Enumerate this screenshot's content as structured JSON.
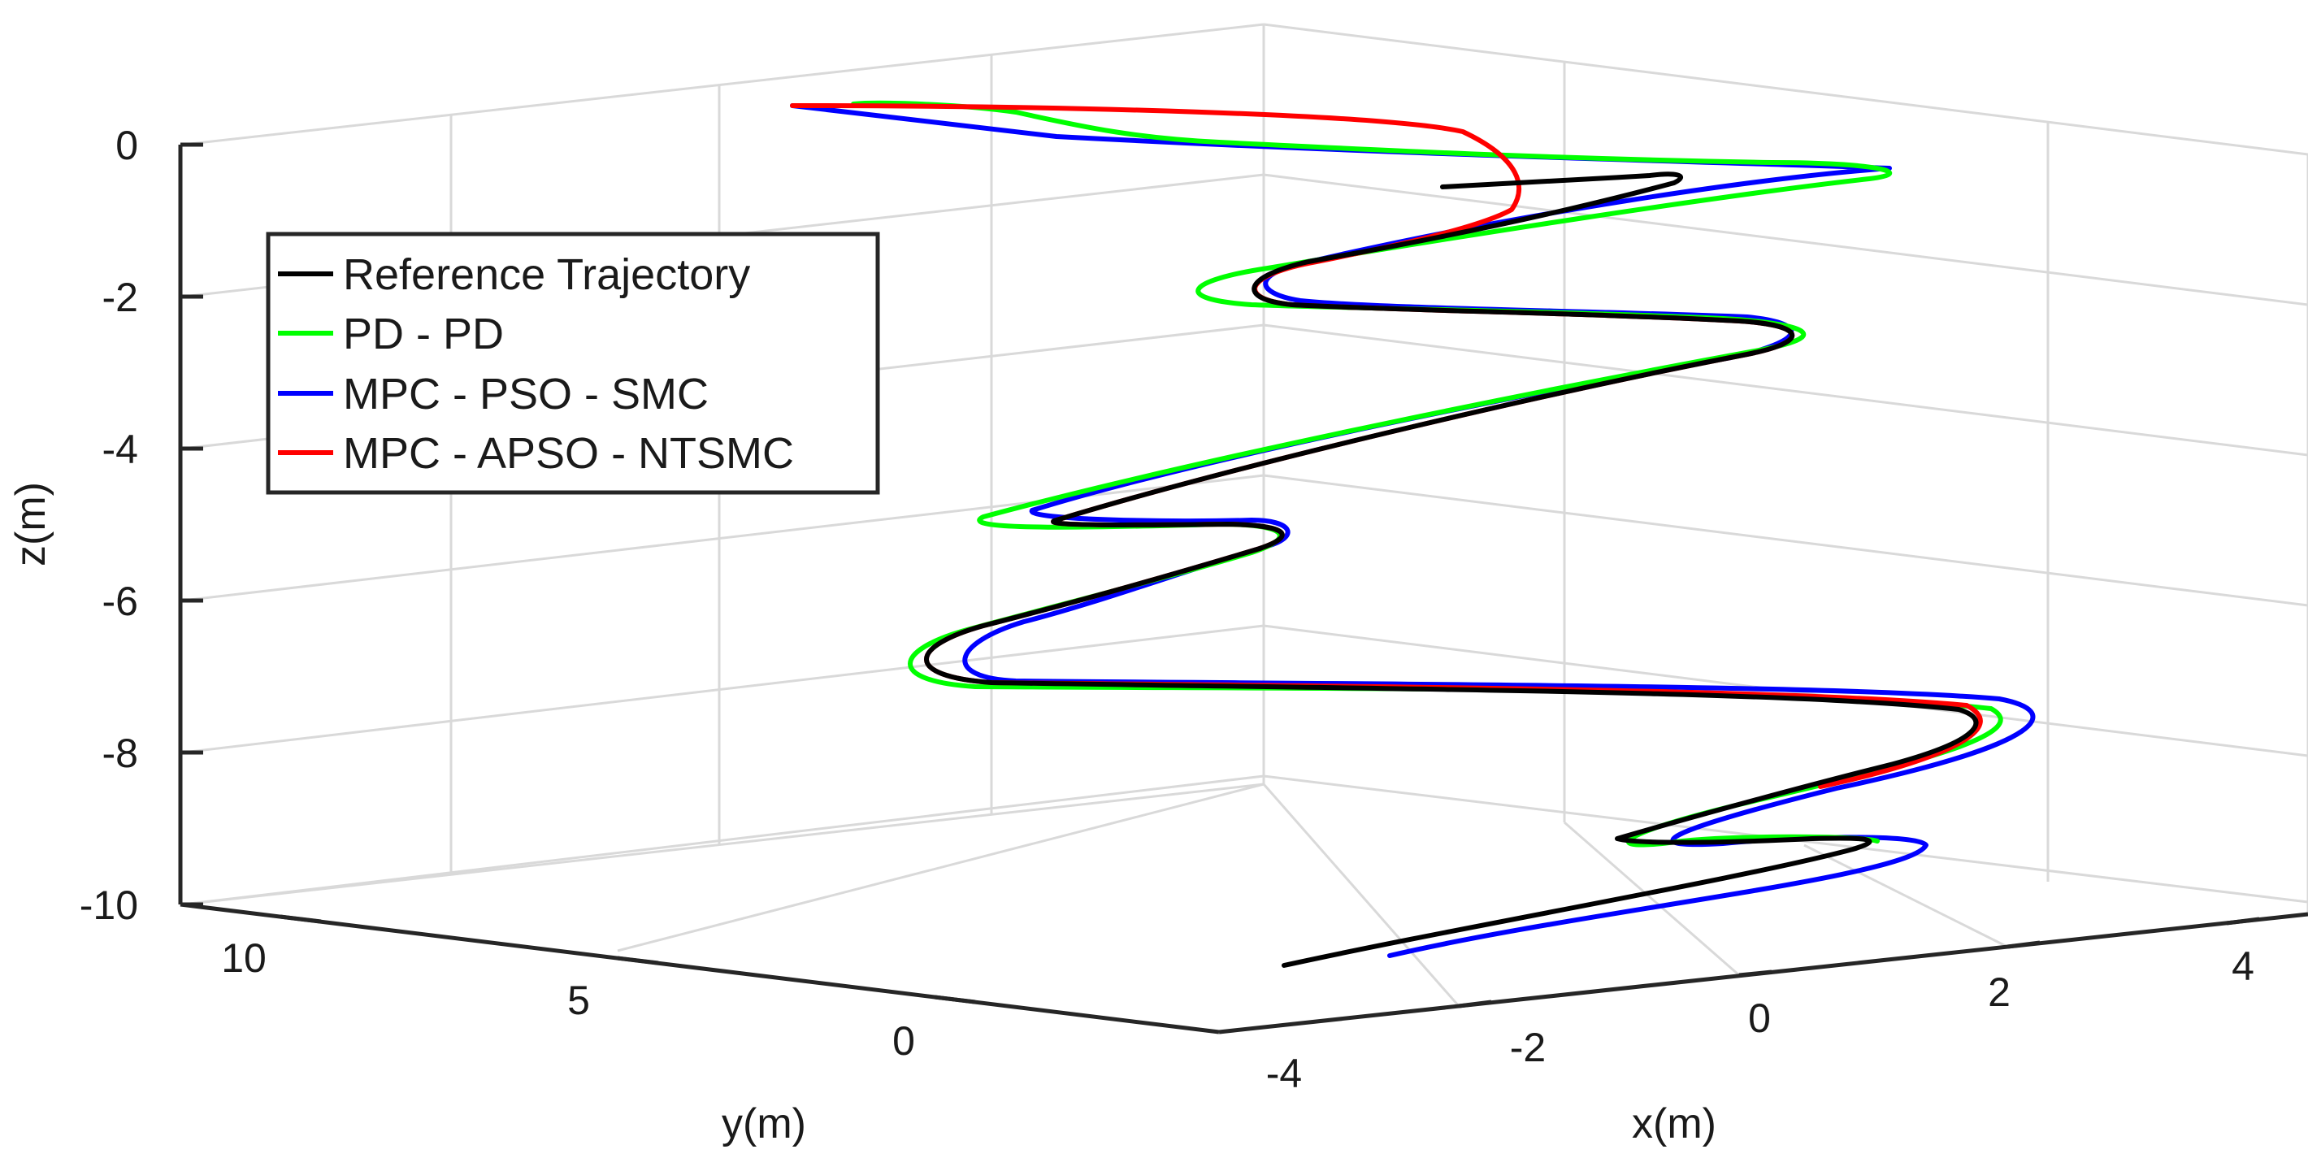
{
  "chart_data": {
    "type": "line3d",
    "title": "",
    "xlabel": "x(m)",
    "ylabel": "y(m)",
    "zlabel": "z(m)",
    "xlim": [
      -4,
      4
    ],
    "ylim": [
      0,
      12
    ],
    "zlim": [
      -10,
      0
    ],
    "grid": true,
    "x_ticks": [
      "-4",
      "-2",
      "0",
      "2",
      "4"
    ],
    "y_ticks": [
      "0",
      "5",
      "10"
    ],
    "z_ticks": [
      "0",
      "-2",
      "-4",
      "-6",
      "-8",
      "-10"
    ],
    "legend_position": "upper-left",
    "series": [
      {
        "name": "Reference Trajectory",
        "color": "#000000",
        "points": [
          [
            -3.2,
            0.0,
            -10.0
          ],
          [
            0.5,
            1.2,
            -9.25
          ],
          [
            0.05,
            1.0,
            -9.2
          ],
          [
            0.6,
            1.7,
            -8.5
          ],
          [
            1.9,
            2.1,
            -7.6
          ],
          [
            -1.8,
            3.6,
            -7.0
          ],
          [
            -1.6,
            4.2,
            -6.5
          ],
          [
            -0.4,
            4.0,
            -6.0
          ],
          [
            -1.2,
            5.2,
            -5.1
          ],
          [
            0.1,
            5.8,
            -5.0
          ],
          [
            -0.9,
            6.5,
            -4.2
          ],
          [
            -0.1,
            7.6,
            -2.7
          ],
          [
            -1.0,
            8.8,
            -2.0
          ],
          [
            -0.6,
            9.2,
            -1.8
          ],
          [
            0.0,
            9.6,
            -0.7
          ],
          [
            -0.4,
            10.1,
            -0.55
          ]
        ]
      },
      {
        "name": "PD - PD",
        "color": "#00ff00",
        "points": [
          [
            0.45,
            1.1,
            -9.15
          ],
          [
            -0.05,
            0.9,
            -9.25
          ],
          [
            0.5,
            1.6,
            -8.6
          ],
          [
            2.1,
            2.3,
            -7.6
          ],
          [
            -1.9,
            3.5,
            -7.0
          ],
          [
            -1.7,
            4.3,
            -6.55
          ],
          [
            -0.4,
            4.0,
            -6.05
          ],
          [
            -1.3,
            5.3,
            -5.1
          ],
          [
            0.2,
            5.9,
            -5.05
          ],
          [
            -0.7,
            6.4,
            -4.3
          ],
          [
            0.2,
            7.8,
            -2.75
          ],
          [
            -1.2,
            8.9,
            -2.0
          ],
          [
            -0.2,
            9.6,
            -1.0
          ],
          [
            -1.2,
            11.8,
            0.6
          ],
          [
            -1.5,
            11.4,
            0.45
          ]
        ]
      },
      {
        "name": "MPC - PSO - SMC",
        "color": "#0000ff",
        "points": [
          [
            -2.8,
            0.1,
            -9.9
          ],
          [
            0.6,
            1.5,
            -9.3
          ],
          [
            0.2,
            1.2,
            -9.05
          ],
          [
            0.4,
            1.8,
            -8.6
          ],
          [
            2.3,
            2.4,
            -7.6
          ],
          [
            -1.6,
            3.9,
            -6.85
          ],
          [
            -1.4,
            4.4,
            -6.4
          ],
          [
            -0.3,
            4.1,
            -6.05
          ],
          [
            -1.1,
            5.4,
            -5.0
          ],
          [
            0.3,
            6.0,
            -4.9
          ],
          [
            -0.8,
            6.7,
            -4.1
          ],
          [
            0.0,
            7.9,
            -2.65
          ],
          [
            -0.8,
            9.0,
            -1.95
          ],
          [
            0.2,
            9.8,
            -0.8
          ],
          [
            -1.5,
            11.4,
            0.45
          ]
        ]
      },
      {
        "name": "MPC - APSO - NTSMC",
        "color": "#ff0000",
        "points": [
          [
            0.5,
            1.3,
            -8.6
          ],
          [
            1.9,
            2.2,
            -7.6
          ],
          [
            -1.85,
            3.6,
            -7.0
          ],
          [
            -1.6,
            4.2,
            -6.5
          ],
          [
            -0.4,
            4.0,
            -6.0
          ],
          [
            -1.2,
            5.2,
            -5.05
          ],
          [
            0.1,
            5.8,
            -5.0
          ],
          [
            -0.9,
            6.5,
            -4.2
          ],
          [
            -0.1,
            7.6,
            -2.7
          ],
          [
            -1.0,
            8.8,
            -2.0
          ],
          [
            -0.55,
            9.3,
            -1.3
          ],
          [
            -0.3,
            9.8,
            -0.3
          ],
          [
            -1.5,
            11.4,
            0.45
          ]
        ]
      }
    ]
  }
}
